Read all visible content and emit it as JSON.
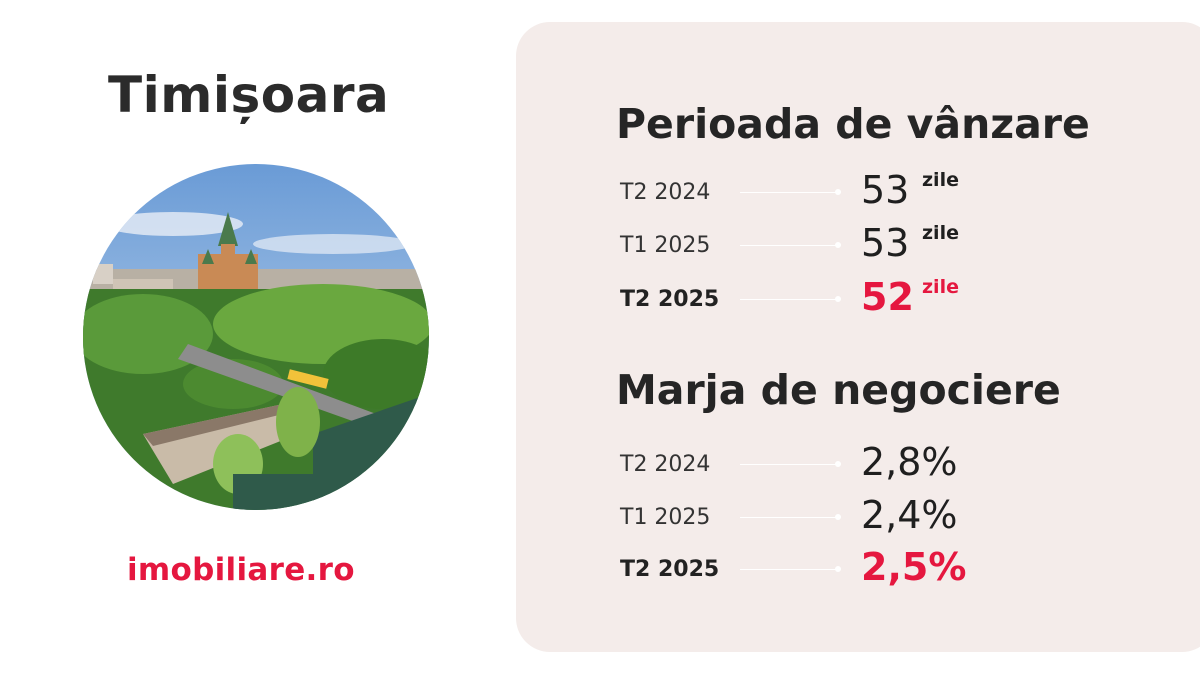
{
  "city": "Timișoara",
  "brand": {
    "logo_text": "imobiliare.ro",
    "accent": "#e5173f"
  },
  "sections": [
    {
      "title": "Perioada de vânzare",
      "rows": [
        {
          "period": "T2 2024",
          "value": "53",
          "unit": "zile"
        },
        {
          "period": "T1 2025",
          "value": "53",
          "unit": "zile"
        },
        {
          "period": "T2 2025",
          "value": "52",
          "unit": "zile"
        }
      ]
    },
    {
      "title": "Marja de negociere",
      "rows": [
        {
          "period": "T2 2024",
          "value": "2,8%"
        },
        {
          "period": "T1 2025",
          "value": "2,4%"
        },
        {
          "period": "T2 2025",
          "value": "2,5%"
        }
      ]
    }
  ]
}
